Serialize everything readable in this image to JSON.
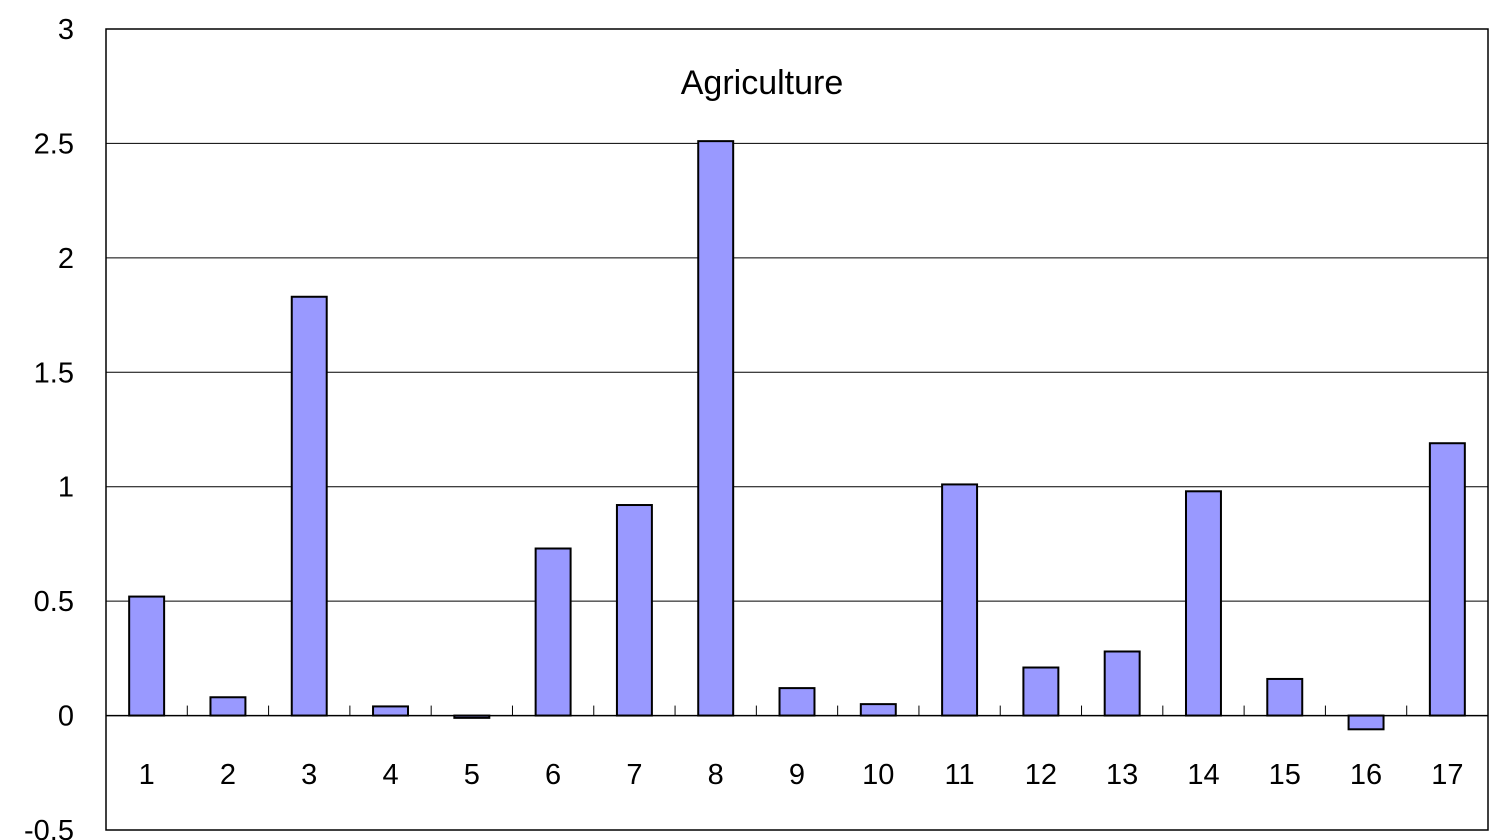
{
  "chart_data": {
    "type": "bar",
    "title": "Agriculture",
    "xlabel": "",
    "ylabel": "",
    "categories": [
      "1",
      "2",
      "3",
      "4",
      "5",
      "6",
      "7",
      "8",
      "9",
      "10",
      "11",
      "12",
      "13",
      "14",
      "15",
      "16",
      "17"
    ],
    "values": [
      0.52,
      0.08,
      1.83,
      0.04,
      -0.01,
      0.73,
      0.92,
      2.51,
      0.12,
      0.05,
      1.01,
      0.21,
      0.28,
      0.98,
      0.16,
      -0.06,
      1.19
    ],
    "ylim": [
      -0.5,
      3
    ],
    "y_ticks": [
      "-0.5",
      "0",
      "0.5",
      "1",
      "1.5",
      "2",
      "2.5",
      "3"
    ],
    "grid": true,
    "legend": "none",
    "bar_color": "#9999ff",
    "bar_edge_color": "#000000"
  }
}
